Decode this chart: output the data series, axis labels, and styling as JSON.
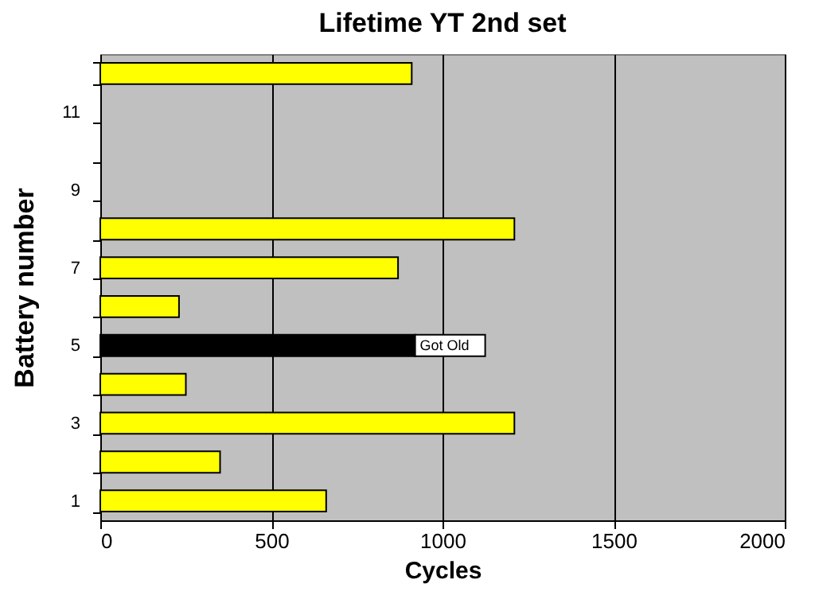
{
  "chart_data": {
    "type": "bar",
    "orientation": "horizontal",
    "title": "Lifetime YT 2nd set",
    "xlabel": "Cycles",
    "ylabel": "Battery number",
    "categories": [
      null,
      "11",
      null,
      "9",
      null,
      "7",
      null,
      "5",
      null,
      "3",
      null,
      "1"
    ],
    "values": [
      910,
      null,
      null,
      null,
      1210,
      870,
      230,
      920,
      250,
      1210,
      350,
      660
    ],
    "colors": [
      "#ffff00",
      "#ffff00",
      "#ffff00",
      "#ffff00",
      "#ffff00",
      "#ffff00",
      "#ffff00",
      "#000000",
      "#ffff00",
      "#ffff00",
      "#ffff00",
      "#ffff00"
    ],
    "xlim": [
      0,
      2000
    ],
    "xticks": [
      0,
      500,
      1000,
      1500,
      2000
    ],
    "grid": "x",
    "annotations": [
      {
        "text": "Got Old",
        "x": 920,
        "y": "5"
      }
    ]
  }
}
